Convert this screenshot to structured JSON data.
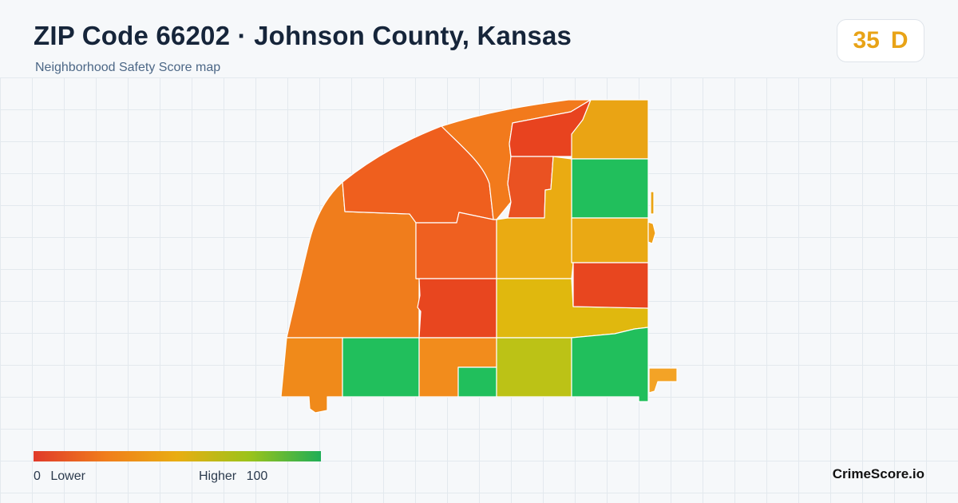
{
  "header": {
    "title": "ZIP Code 66202 · Johnson County, Kansas",
    "subtitle": "Neighborhood Safety Score map"
  },
  "score": {
    "value": "35",
    "grade": "D",
    "color": "#e8a317"
  },
  "legend": {
    "low_value": "0",
    "low_label": "Lower",
    "high_label": "Higher",
    "high_value": "100",
    "gradient_colors": [
      "#e03a2a",
      "#f07d1c",
      "#e9ad12",
      "#9cc31a",
      "#1fae57"
    ]
  },
  "brand": "CrimeScore.io",
  "map": {
    "regions": [
      {
        "name": "region-west-large",
        "color": "#f07d1c"
      },
      {
        "name": "region-northwest",
        "color": "#ef5f1e"
      },
      {
        "name": "region-north-center",
        "color": "#f27a1c"
      },
      {
        "name": "region-north-top",
        "color": "#e8431f"
      },
      {
        "name": "region-northeast-top",
        "color": "#eaa414"
      },
      {
        "name": "region-north-narrow",
        "color": "#ea5222"
      },
      {
        "name": "region-east-green-upper",
        "color": "#21bf5c"
      },
      {
        "name": "region-center-orange",
        "color": "#ef6020"
      },
      {
        "name": "region-center-yellow",
        "color": "#eaab12"
      },
      {
        "name": "region-east-yellow",
        "color": "#eaa914"
      },
      {
        "name": "region-center-red",
        "color": "#e8461f"
      },
      {
        "name": "region-center-gold",
        "color": "#e0b80e"
      },
      {
        "name": "region-east-red",
        "color": "#e8461f"
      },
      {
        "name": "region-southwest-orange",
        "color": "#f08a1a"
      },
      {
        "name": "region-south-green-west",
        "color": "#21bf5c"
      },
      {
        "name": "region-south-orange",
        "color": "#f28c1c"
      },
      {
        "name": "region-south-green-small",
        "color": "#21bf5c"
      },
      {
        "name": "region-south-olive",
        "color": "#bcc216"
      },
      {
        "name": "region-southeast-green",
        "color": "#21bf5c"
      },
      {
        "name": "region-east-sliver",
        "color": "#eaa414"
      },
      {
        "name": "region-east-notch",
        "color": "#f0a118"
      },
      {
        "name": "region-southeast-orange-tab",
        "color": "#f3a326"
      },
      {
        "name": "region-south-tab",
        "color": "#f3a326"
      }
    ]
  }
}
